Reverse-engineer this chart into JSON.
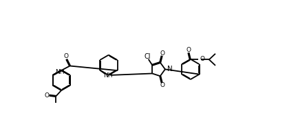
{
  "bg": "#ffffff",
  "lc": "#000000",
  "lw": 1.3,
  "dw": 0.022,
  "fig_w": 4.33,
  "fig_h": 2.0,
  "dpi": 100,
  "xlim": [
    -0.2,
    10.8
  ],
  "ylim": [
    0.0,
    5.0
  ]
}
